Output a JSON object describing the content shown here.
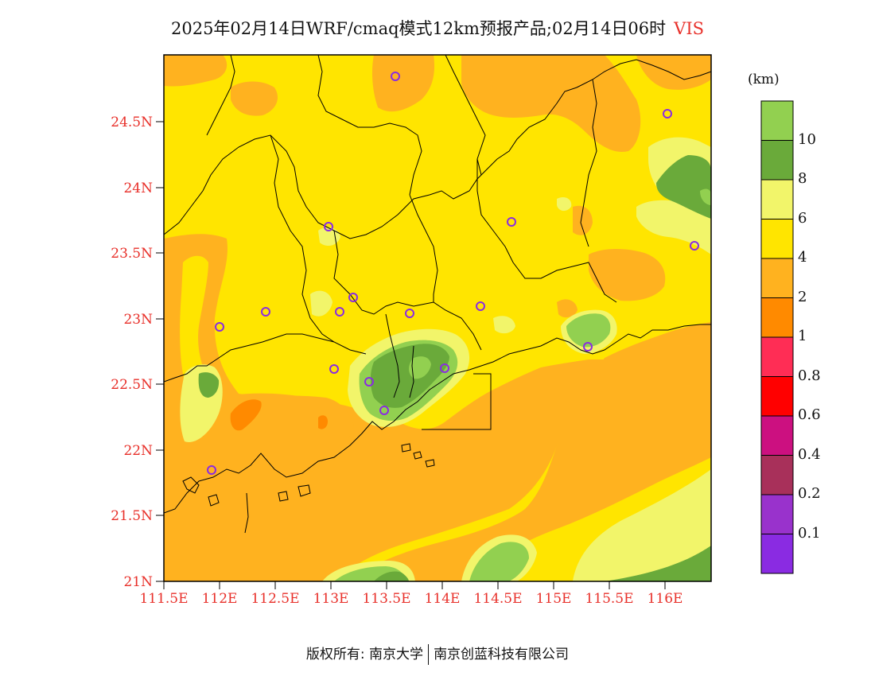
{
  "title": {
    "main": "2025年02月14日WRF/cmaq模式12km预报产品;02月14日06时",
    "variable": "VIS"
  },
  "axes": {
    "lat_labels": [
      "24.5N",
      "24N",
      "23.5N",
      "23N",
      "22.5N",
      "22N",
      "21.5N",
      "21N"
    ],
    "lon_labels": [
      "111.5E",
      "112E",
      "112.5E",
      "113E",
      "113.5E",
      "114E",
      "114.5E",
      "115E",
      "115.5E",
      "116E"
    ],
    "lat_range": [
      21,
      25
    ],
    "lon_range": [
      111.5,
      116.4
    ]
  },
  "colorbar": {
    "unit": "(km)",
    "labels": [
      "10",
      "8",
      "6",
      "4",
      "2",
      "1",
      "0.8",
      "0.6",
      "0.4",
      "0.2",
      "0.1"
    ],
    "colors": [
      "#92d050",
      "#6aaa3a",
      "#f2f56a",
      "#ffe500",
      "#ffb21f",
      "#ff8a00",
      "#ff2d55",
      "#ff0000",
      "#cc1080",
      "#a8305a",
      "#9932cc",
      "#8a2be2"
    ]
  },
  "footer": {
    "left": "版权所有: 南京大学",
    "right": "南京创蓝科技有限公司"
  }
}
